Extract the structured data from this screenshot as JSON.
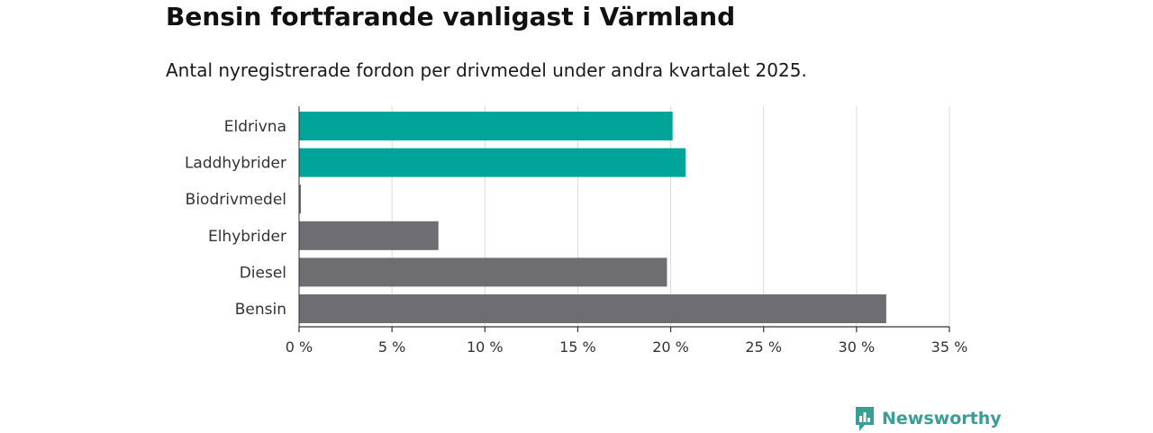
{
  "title": "Bensin fortfarande vanligast i Värmland",
  "subtitle": "Antal nyregistrerade fordon per drivmedel under andra kvartalet 2025.",
  "logo": {
    "text": "Newsworthy",
    "icon": "newsworthy-chart-bubble-icon"
  },
  "colors": {
    "highlight": "#00a498",
    "default": "#6e6d72",
    "grid": "#d9d9d9",
    "axis": "#333333",
    "brand": "#3a9d96"
  },
  "chart_data": {
    "type": "bar",
    "orientation": "horizontal",
    "categories": [
      "Eldrivna",
      "Laddhybrider",
      "Biodrivmedel",
      "Elhybrider",
      "Diesel",
      "Bensin"
    ],
    "values": [
      20.1,
      20.8,
      0.1,
      7.5,
      19.8,
      31.6
    ],
    "highlighted": [
      true,
      true,
      false,
      false,
      false,
      false
    ],
    "xlim": [
      0,
      35
    ],
    "xticks": [
      0,
      5,
      10,
      15,
      20,
      25,
      30,
      35
    ],
    "xtick_labels": [
      "0 %",
      "5 %",
      "10 %",
      "15 %",
      "20 %",
      "25 %",
      "30 %",
      "35 %"
    ],
    "xlabel": "",
    "ylabel": "",
    "grid": "vertical"
  }
}
